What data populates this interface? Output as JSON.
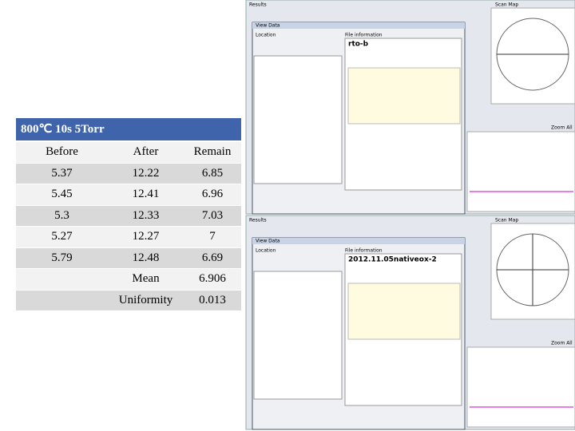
{
  "table": {
    "title": "800℃ 10s 5Torr",
    "header": [
      "Before",
      "After",
      "Remain"
    ],
    "rows": [
      [
        5.37,
        12.22,
        6.85
      ],
      [
        5.45,
        12.41,
        6.96
      ],
      [
        5.3,
        12.33,
        7.03
      ],
      [
        5.27,
        12.27,
        7
      ],
      [
        5.79,
        12.48,
        6.69
      ]
    ],
    "summary": [
      [
        "Mean",
        6.906
      ],
      [
        "Uniformity",
        0.013
      ]
    ]
  },
  "screenshots": [
    {
      "panel": "Results",
      "dialog": "View Data",
      "location": "Location",
      "info": "File information",
      "file": "rto-b",
      "map": "Scan Map",
      "zoom": "Zoom All"
    },
    {
      "panel": "Results",
      "dialog": "View Data",
      "location": "Location",
      "info": "File information",
      "file": "2012.11.05nativeox-2",
      "map": "Scan Map",
      "zoom": "Zoom All"
    }
  ]
}
